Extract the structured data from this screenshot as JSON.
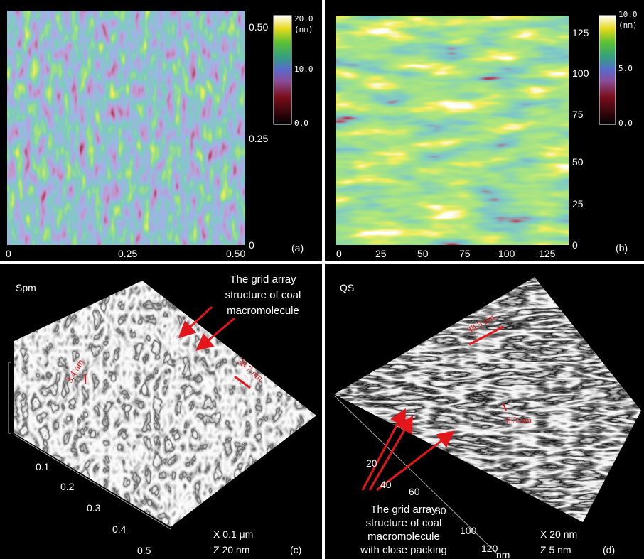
{
  "panels": {
    "a": {
      "label": "(a)",
      "xticks": [
        "0",
        "0.25",
        "0.50"
      ],
      "yticks": [
        "0.50",
        "0.25",
        "0"
      ],
      "colorbar": [
        "20.0",
        "(nm)",
        "10.0",
        "0.0"
      ]
    },
    "b": {
      "label": "(b)",
      "xticks": [
        "0",
        "25",
        "50",
        "75",
        "100",
        "125"
      ],
      "yticks": [
        "125",
        "100",
        "75",
        "50",
        "25",
        "0"
      ],
      "colorbar": [
        "10.0",
        "(nm)",
        "5.0",
        "0.0"
      ]
    },
    "c": {
      "label": "(c)",
      "title": "Spm",
      "annotation": [
        "The grid array",
        "structure of coal",
        "macromolecule"
      ],
      "measurements": [
        "3.4 nm",
        "38.7 nm"
      ],
      "ticks": [
        "0.1",
        "0.2",
        "0.3",
        "0.4",
        "0.5"
      ],
      "scale": [
        "X 0.1 μm",
        "Z 20 nm"
      ]
    },
    "d": {
      "label": "(d)",
      "title": "QS",
      "annotation": [
        "The grid array",
        "structure of coal",
        "macromolecule",
        "with close packing"
      ],
      "measurements": [
        "38.5 nm",
        "6.3 nm"
      ],
      "ticks": [
        "20",
        "40",
        "60",
        "80",
        "100",
        "120"
      ],
      "unit": "nm",
      "scale": [
        "X 20 nm",
        "Z 5 nm"
      ]
    }
  }
}
